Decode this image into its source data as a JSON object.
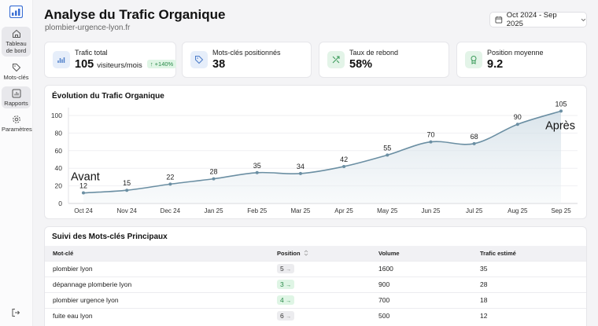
{
  "sidebar": {
    "logo": "bar-chart-logo",
    "items": [
      {
        "label_lines": [
          "Tableau",
          "de bord"
        ],
        "icon": "home-icon",
        "active": true
      },
      {
        "label_lines": [
          "Mots-clés"
        ],
        "icon": "tag-icon",
        "active": false
      },
      {
        "label_lines": [
          "Rapports"
        ],
        "icon": "report-icon",
        "active": true
      },
      {
        "label_lines": [
          "Paramètres"
        ],
        "icon": "gear-icon",
        "active": false
      }
    ],
    "logout_icon": "logout-icon"
  },
  "header": {
    "title": "Analyse du Trafic Organique",
    "subtitle": "plombier-urgence-lyon.fr",
    "date_range": "Oct 2024 - Sep 2025"
  },
  "stats": [
    {
      "label": "Trafic total",
      "value": "105",
      "unit": "visiteurs/mois",
      "badge": "↑ +140%",
      "icon": "bar-chart-icon",
      "icon_bg": "#e6eefa",
      "icon_color": "#4a7bc8"
    },
    {
      "label": "Mots-clés positionnés",
      "value": "38",
      "icon": "tag-icon",
      "icon_bg": "#e6eefa",
      "icon_color": "#4a7bc8"
    },
    {
      "label": "Taux de rebond",
      "value": "58%",
      "icon": "shuffle-icon",
      "icon_bg": "#e3f4e8",
      "icon_color": "#3a9a5a"
    },
    {
      "label": "Position moyenne",
      "value": "9.2",
      "icon": "award-icon",
      "icon_bg": "#e3f4e8",
      "icon_color": "#3a9a5a"
    }
  ],
  "chart_data": {
    "type": "area",
    "title": "Évolution du Trafic Organique",
    "categories": [
      "Oct 24",
      "Nov 24",
      "Dec 24",
      "Jan 25",
      "Feb 25",
      "Mar 25",
      "Apr 25",
      "May 25",
      "Jun 25",
      "Jul 25",
      "Aug 25",
      "Sep 25"
    ],
    "values": [
      12,
      15,
      22,
      28,
      35,
      34,
      42,
      55,
      70,
      68,
      90,
      105
    ],
    "ylim": [
      0,
      100
    ],
    "yticks": [
      0,
      20,
      40,
      60,
      80,
      100
    ],
    "xlabel": "",
    "ylabel": "",
    "grid": true,
    "annotations": [
      {
        "text": "Avant",
        "at": "Oct 24"
      },
      {
        "text": "Après",
        "at": "Sep 25"
      }
    ],
    "line_color": "#6b8fa3"
  },
  "keywords": {
    "title": "Suivi des Mots-clés Principaux",
    "columns": [
      "Mot-clé",
      "Position",
      "Volume",
      "Trafic estimé"
    ],
    "sort_icon": "sort-icon",
    "rows": [
      {
        "keyword": "plombier lyon",
        "position": "5",
        "trend": "neutral",
        "volume": "1600",
        "traffic": "35"
      },
      {
        "keyword": "dépannage plomberie lyon",
        "position": "3",
        "trend": "good",
        "volume": "900",
        "traffic": "28"
      },
      {
        "keyword": "plombier urgence lyon",
        "position": "4",
        "trend": "good",
        "volume": "700",
        "traffic": "18"
      },
      {
        "keyword": "fuite eau lyon",
        "position": "6",
        "trend": "neutral",
        "volume": "500",
        "traffic": "12"
      }
    ]
  }
}
